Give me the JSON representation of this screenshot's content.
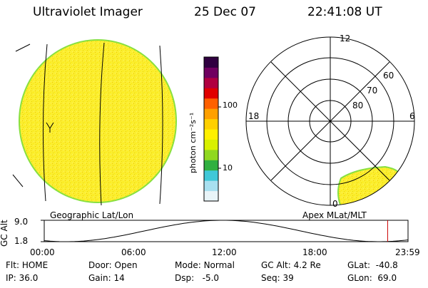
{
  "header": {
    "title": "Ultraviolet Imager",
    "date": "25 Dec 07",
    "time": "22:41:08 UT"
  },
  "geo_panel": {
    "label": "Geographic Lat/Lon"
  },
  "polar_panel": {
    "label": "Apex MLat/MLT",
    "mlt_labels": [
      "12",
      "18",
      "6",
      "0"
    ],
    "lat_labels": [
      "60",
      "70",
      "80"
    ]
  },
  "colorbar": {
    "label": "photon cm⁻²s⁻¹",
    "ticks": [
      "100",
      "10"
    ],
    "colors": [
      "#e8f4f8",
      "#a8e0f0",
      "#40c8d8",
      "#30b040",
      "#90d820",
      "#d8f000",
      "#fff000",
      "#ffd000",
      "#ffa000",
      "#ff6000",
      "#e00000",
      "#b00040",
      "#700060",
      "#300040"
    ]
  },
  "altitude_strip": {
    "axis_label": "GC Alt",
    "ymax": "9.0",
    "ymin": "1.8",
    "time_ticks": [
      "00:00",
      "06:00",
      "12:00",
      "18:00",
      "23:59"
    ],
    "marker_fraction": 0.944,
    "marker_color": "#cc0000"
  },
  "status": {
    "row1": [
      {
        "key": "Flt:",
        "value": "HOME"
      },
      {
        "key": "Door:",
        "value": "Open"
      },
      {
        "key": "Mode:",
        "value": "Normal"
      },
      {
        "key": "GC Alt:",
        "value": "4.2 Re"
      },
      {
        "key": "GLat:",
        "value": "-40.8"
      }
    ],
    "row2": [
      {
        "key": "IP:",
        "value": "36.0"
      },
      {
        "key": "Gain:",
        "value": "14"
      },
      {
        "key": "Dsp:",
        "value": "-5.0"
      },
      {
        "key": "Seq:",
        "value": "39"
      },
      {
        "key": "GLon:",
        "value": "69.0"
      }
    ]
  },
  "colors": {
    "disk_fill": "#fbee30",
    "disk_edge": "#88e040",
    "aurora_fill": "#fbee30"
  }
}
